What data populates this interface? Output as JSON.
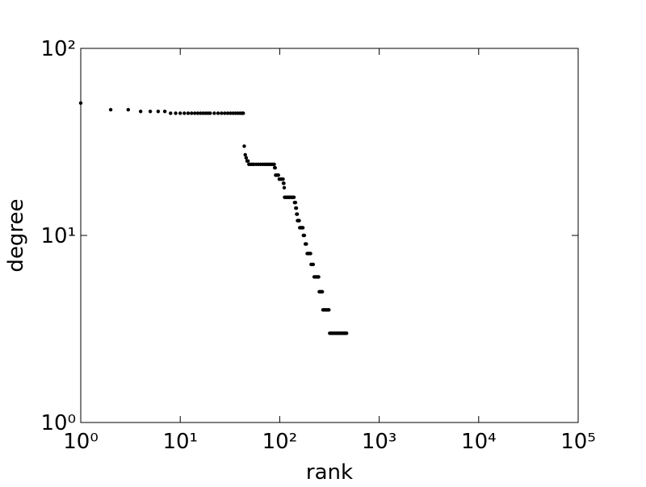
{
  "chart_data": {
    "type": "scatter",
    "xlabel": "rank",
    "ylabel": "degree",
    "color": "#000000",
    "xscale": "log",
    "yscale": "log",
    "xlim": [
      1,
      100000
    ],
    "ylim": [
      1,
      100
    ],
    "xticks": [
      {
        "value": 1,
        "label": "10⁰"
      },
      {
        "value": 10,
        "label": "10¹"
      },
      {
        "value": 100,
        "label": "10²"
      },
      {
        "value": 1000,
        "label": "10³"
      },
      {
        "value": 10000,
        "label": "10⁴"
      },
      {
        "value": 100000,
        "label": "10⁵"
      }
    ],
    "yticks": [
      {
        "value": 1,
        "label": "10⁰"
      },
      {
        "value": 10,
        "label": "10¹"
      },
      {
        "value": 100,
        "label": "10²"
      }
    ],
    "series": [
      {
        "color": "#000000",
        "x": [
          1,
          2,
          3,
          4,
          5,
          6,
          7,
          8,
          9,
          10,
          11,
          12,
          13,
          14,
          15,
          16,
          17,
          18,
          19,
          20,
          22,
          24,
          26,
          28,
          30,
          32,
          34,
          36,
          38,
          40,
          42,
          43,
          44,
          45,
          46,
          47,
          48,
          49,
          51,
          53,
          55,
          58,
          61,
          64,
          67,
          70,
          73,
          76,
          79,
          82,
          85,
          88,
          89,
          90,
          91,
          94,
          97,
          99,
          102,
          105,
          108,
          109,
          110,
          111,
          112,
          115,
          118,
          121,
          124,
          127,
          130,
          133,
          136,
          139,
          141,
          144,
          145,
          147,
          148,
          150,
          151,
          154,
          157,
          159,
          162,
          165,
          168,
          171,
          173,
          177,
          181,
          185,
          189,
          194,
          199,
          204,
          207,
          212,
          217,
          222,
          228,
          234,
          240,
          246,
          250,
          256,
          262,
          268,
          272,
          280,
          288,
          296,
          304,
          312,
          318,
          328,
          338,
          348,
          358,
          368,
          378,
          388,
          398,
          410,
          422,
          434,
          446,
          458,
          470
        ],
        "y": [
          51,
          47,
          47,
          46,
          46,
          46,
          46,
          45,
          45,
          45,
          45,
          45,
          45,
          45,
          45,
          45,
          45,
          45,
          45,
          45,
          45,
          45,
          45,
          45,
          45,
          45,
          45,
          45,
          45,
          45,
          45,
          45,
          30,
          27,
          26,
          25,
          25,
          24,
          24,
          24,
          24,
          24,
          24,
          24,
          24,
          24,
          24,
          24,
          24,
          24,
          24,
          24,
          23,
          23,
          21,
          21,
          21,
          20,
          20,
          20,
          20,
          19,
          19,
          18,
          16,
          16,
          16,
          16,
          16,
          16,
          16,
          16,
          16,
          16,
          15,
          15,
          14,
          14,
          13,
          13,
          12,
          12,
          12,
          11,
          11,
          11,
          11,
          11,
          10,
          10,
          9,
          9,
          8,
          8,
          8,
          8,
          7,
          7,
          7,
          6,
          6,
          6,
          6,
          6,
          5,
          5,
          5,
          5,
          4,
          4,
          4,
          4,
          4,
          4,
          3,
          3,
          3,
          3,
          3,
          3,
          3,
          3,
          3,
          3,
          3,
          3,
          3,
          3,
          3
        ]
      }
    ]
  }
}
